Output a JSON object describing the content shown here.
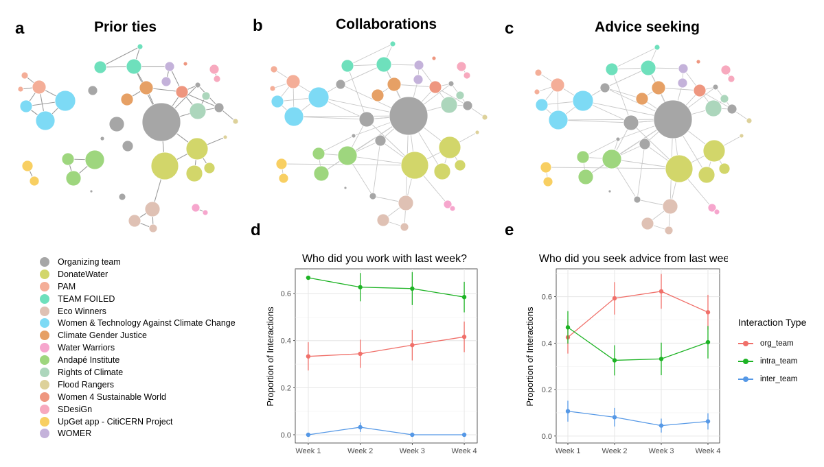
{
  "panels": {
    "a": {
      "letter": "a",
      "title": "Prior ties"
    },
    "b": {
      "letter": "b",
      "title": "Collaborations"
    },
    "c": {
      "letter": "c",
      "title": "Advice seeking"
    },
    "d": {
      "letter": "d"
    },
    "e": {
      "letter": "e"
    }
  },
  "team_legend": [
    {
      "label": "Organizing team",
      "color": "#A6A6A6"
    },
    {
      "label": "DonateWater",
      "color": "#D2D66A"
    },
    {
      "label": "PAM",
      "color": "#F4AE98"
    },
    {
      "label": "TEAM FOILED",
      "color": "#6EE0BC"
    },
    {
      "label": "Eco Winners",
      "color": "#DFC1B4"
    },
    {
      "label": "Women & Technology Against Climate Change",
      "color": "#7DDAF5"
    },
    {
      "label": "Climate Gender Justice",
      "color": "#E6A065"
    },
    {
      "label": "Water Warriors",
      "color": "#F6A6CD"
    },
    {
      "label": "Andapé Institute",
      "color": "#9ED67E"
    },
    {
      "label": "Rights of Climate",
      "color": "#ACD6BC"
    },
    {
      "label": "Flood Rangers",
      "color": "#DDD19A"
    },
    {
      "label": "Women 4 Sustainable World",
      "color": "#EE967F"
    },
    {
      "label": "SDesiGn",
      "color": "#F7A9BE"
    },
    {
      "label": "UpGet app - CitiCERN Project",
      "color": "#F8CF62"
    },
    {
      "label": "WOMER",
      "color": "#C4B2DA"
    }
  ],
  "interaction_legend": {
    "title": "Interaction Type",
    "items": [
      {
        "label": "org_team",
        "color": "#F0706A"
      },
      {
        "label": "intra_team",
        "color": "#1DB324"
      },
      {
        "label": "inter_team",
        "color": "#5598E6"
      }
    ]
  },
  "chart_data": [
    {
      "type": "line",
      "title": "Who did you work with last week?",
      "xlabel": "",
      "ylabel": "Proportion of Interactions",
      "categories": [
        "Week 1",
        "Week 2",
        "Week 3",
        "Week 4"
      ],
      "ylim": [
        -0.035,
        0.705
      ],
      "yticks": [
        0.0,
        0.2,
        0.4,
        0.6
      ],
      "ytick_labels": [
        "0.0",
        "0.2",
        "0.4",
        "0.6"
      ],
      "grid": true,
      "series": [
        {
          "name": "org_team",
          "color": "#F0706A",
          "values": [
            0.333,
            0.344,
            0.381,
            0.416
          ],
          "err": [
            0.06,
            0.06,
            0.065,
            0.065
          ]
        },
        {
          "name": "intra_team",
          "color": "#1DB324",
          "values": [
            0.667,
            0.627,
            0.621,
            0.585
          ],
          "err": [
            0.0,
            0.06,
            0.07,
            0.065
          ]
        },
        {
          "name": "inter_team",
          "color": "#5598E6",
          "values": [
            0.0,
            0.032,
            0.0,
            0.0
          ],
          "err": [
            0.0,
            0.02,
            0.0,
            0.0
          ]
        }
      ]
    },
    {
      "type": "line",
      "title": "Who did you seek advice from last week?",
      "xlabel": "",
      "ylabel": "Proportion of Interactions",
      "categories": [
        "Week 1",
        "Week 2",
        "Week 3",
        "Week 4"
      ],
      "ylim": [
        -0.03,
        0.72
      ],
      "yticks": [
        0.0,
        0.2,
        0.4,
        0.6
      ],
      "ytick_labels": [
        "0.0",
        "0.2",
        "0.4",
        "0.6"
      ],
      "grid": true,
      "series": [
        {
          "name": "org_team",
          "color": "#F0706A",
          "values": [
            0.425,
            0.593,
            0.623,
            0.533
          ],
          "err": [
            0.07,
            0.07,
            0.075,
            0.075
          ]
        },
        {
          "name": "intra_team",
          "color": "#1DB324",
          "values": [
            0.468,
            0.326,
            0.332,
            0.404
          ],
          "err": [
            0.07,
            0.065,
            0.07,
            0.07
          ]
        },
        {
          "name": "inter_team",
          "color": "#5598E6",
          "values": [
            0.107,
            0.081,
            0.045,
            0.063
          ],
          "err": [
            0.045,
            0.04,
            0.03,
            0.035
          ]
        }
      ]
    }
  ]
}
